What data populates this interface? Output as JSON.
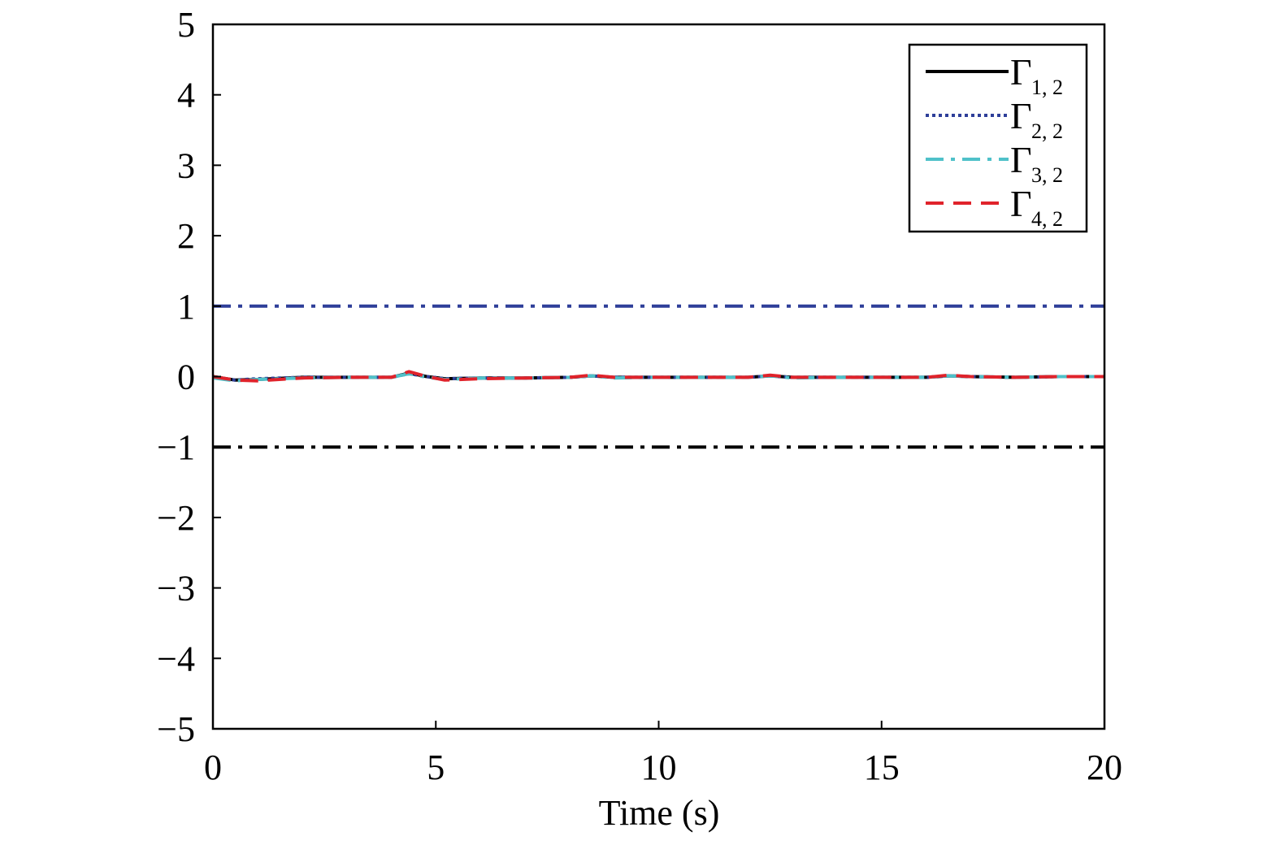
{
  "chart_data": {
    "type": "line",
    "title": "",
    "xlabel": "Time (s)",
    "ylabel": "",
    "xlim": [
      0,
      20
    ],
    "ylim": [
      -5,
      5
    ],
    "xticks": [
      0,
      5,
      10,
      15,
      20
    ],
    "yticks": [
      5,
      4,
      3,
      2,
      1,
      0,
      -1,
      -2,
      -3,
      -4,
      -5
    ],
    "xtick_labels": [
      "0",
      "5",
      "10",
      "15",
      "20"
    ],
    "ytick_labels": [
      "5",
      "4",
      "3",
      "2",
      "1",
      "0",
      "−1",
      "−2",
      "−3",
      "−4",
      "−5"
    ],
    "grid": false,
    "legend_position": "top-right",
    "series": [
      {
        "name": "Γ1, 2",
        "legend_main": "Γ",
        "legend_sub": "1, 2",
        "color": "#000000",
        "style": "solid",
        "x": [
          0,
          0.5,
          1,
          2,
          3,
          4,
          4.4,
          4.8,
          5.2,
          6,
          7,
          8,
          8.5,
          9,
          10,
          11,
          12,
          12.5,
          13,
          14,
          15,
          16,
          16.5,
          17,
          18,
          19,
          20
        ],
        "y": [
          0,
          -0.05,
          -0.04,
          -0.01,
          -0.01,
          -0.01,
          0.05,
          0,
          -0.03,
          -0.02,
          -0.02,
          -0.01,
          0.01,
          -0.01,
          -0.01,
          -0.01,
          -0.01,
          0.01,
          -0.01,
          -0.01,
          -0.01,
          -0.01,
          0.01,
          0,
          -0.01,
          0,
          0
        ]
      },
      {
        "name": "Γ2, 2",
        "legend_main": "Γ",
        "legend_sub": "2, 2",
        "color": "#2e3f99",
        "style": "dotted",
        "x": [
          0,
          0.5,
          1,
          2,
          3,
          4,
          4.4,
          4.8,
          5.2,
          6,
          7,
          8,
          8.5,
          9,
          10,
          11,
          12,
          12.5,
          13,
          14,
          15,
          16,
          16.5,
          17,
          18,
          19,
          20
        ],
        "y": [
          -0.01,
          -0.05,
          -0.03,
          -0.01,
          -0.01,
          -0.01,
          0.04,
          0,
          -0.03,
          -0.02,
          -0.02,
          -0.01,
          0.01,
          -0.01,
          -0.01,
          -0.01,
          -0.01,
          0.01,
          -0.01,
          -0.01,
          -0.01,
          -0.01,
          0.01,
          0,
          -0.01,
          0,
          0
        ]
      },
      {
        "name": "Γ3, 2",
        "legend_main": "Γ",
        "legend_sub": "3, 2",
        "color": "#4fc1c9",
        "style": "dash-dot",
        "x": [
          0,
          0.5,
          1,
          2,
          3,
          4,
          4.4,
          4.8,
          5.2,
          6,
          7,
          8,
          8.5,
          9,
          10,
          11,
          12,
          12.5,
          13,
          14,
          15,
          16,
          16.5,
          17,
          18,
          19,
          20
        ],
        "y": [
          -0.02,
          -0.06,
          -0.04,
          -0.02,
          -0.01,
          -0.01,
          0.04,
          -0.01,
          -0.04,
          -0.02,
          -0.02,
          -0.01,
          0.01,
          -0.02,
          -0.01,
          -0.01,
          -0.01,
          0.01,
          -0.02,
          -0.01,
          -0.01,
          -0.01,
          0.01,
          0,
          -0.01,
          0,
          0
        ]
      },
      {
        "name": "Γ4, 2",
        "legend_main": "Γ",
        "legend_sub": "4, 2",
        "color": "#e0232b",
        "style": "dashed",
        "x": [
          0,
          0.5,
          1,
          2,
          3,
          4,
          4.4,
          4.8,
          5.2,
          6,
          7,
          8,
          8.5,
          9,
          10,
          11,
          12,
          12.5,
          13,
          14,
          15,
          16,
          16.5,
          17,
          18,
          19,
          20
        ],
        "y": [
          0,
          -0.05,
          -0.06,
          -0.02,
          -0.01,
          -0.01,
          0.07,
          0,
          -0.05,
          -0.03,
          -0.02,
          -0.01,
          0.02,
          -0.01,
          -0.01,
          -0.01,
          -0.01,
          0.02,
          -0.01,
          -0.01,
          -0.01,
          -0.01,
          0.02,
          0,
          -0.01,
          0,
          0
        ]
      }
    ],
    "reference_lines": [
      {
        "y": 1,
        "color": "#2e3f99",
        "style": "dash-dot"
      },
      {
        "y": -1,
        "color": "#000000",
        "style": "dash-dot"
      }
    ]
  }
}
